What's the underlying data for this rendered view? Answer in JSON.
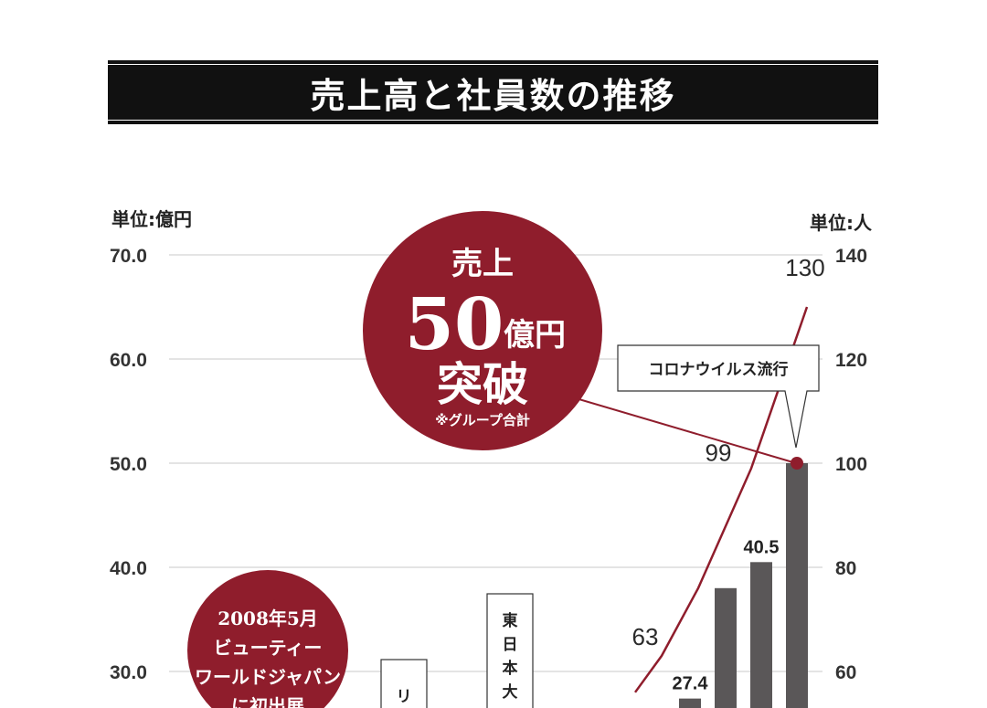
{
  "title": "売上高と社員数の推移",
  "left_unit": "単位:億円",
  "right_unit": "単位:人",
  "colors": {
    "accent": "#8f1d2c",
    "bar": "#5a5758",
    "line": "#8f1d2c",
    "grid": "#c8c8c8"
  },
  "callout_big": {
    "line1": "売上",
    "number": "50",
    "unit": "億円",
    "line3": "突破",
    "note": "※グループ合計"
  },
  "callout_small": {
    "lines": [
      "2008年5月",
      "ビューティー",
      "ワールドジャパン",
      "に初出展"
    ]
  },
  "annotations": {
    "corona": "コロナウイルス流行",
    "lehman": "リ",
    "earthquake": "東日本大"
  },
  "chart_data": {
    "type": "bar+line",
    "left_axis": {
      "ticks": [
        "30.0",
        "40.0",
        "50.0",
        "60.0",
        "70.0"
      ],
      "range": [
        30,
        70
      ]
    },
    "right_axis": {
      "ticks": [
        "60",
        "80",
        "100",
        "120",
        "140"
      ],
      "range": [
        60,
        140
      ]
    },
    "bars": [
      {
        "value": 27.4,
        "label": "27.4"
      },
      {
        "value": 38.0,
        "label": ""
      },
      {
        "value": 40.5,
        "label": "40.5"
      },
      {
        "value": 50.0,
        "label": ""
      }
    ],
    "line": [
      {
        "value": 56,
        "label": ""
      },
      {
        "value": 63,
        "label": "63"
      },
      {
        "value": 76,
        "label": ""
      },
      {
        "value": 99,
        "label": "99"
      },
      {
        "value": 130,
        "label": "130"
      }
    ]
  }
}
